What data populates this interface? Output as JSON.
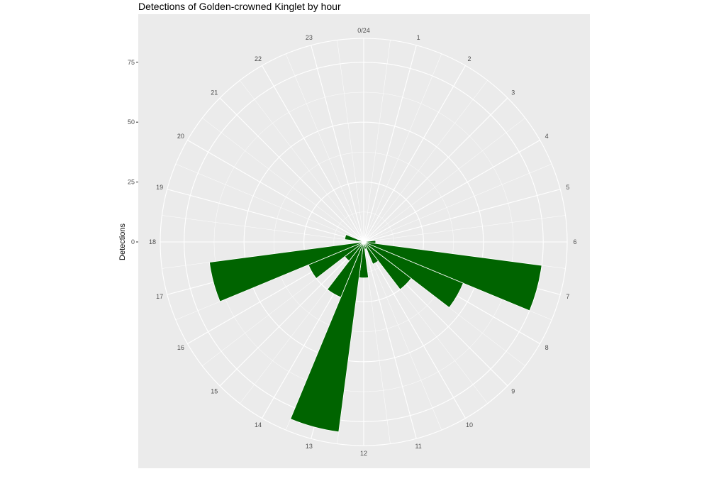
{
  "chart_data": {
    "type": "bar",
    "coord": "polar",
    "title": "Detections of Golden-crowned Kinglet by hour",
    "xlabel": "",
    "ylabel": "Detections",
    "categories": [
      "0/24",
      "1",
      "2",
      "3",
      "4",
      "5",
      "6",
      "7",
      "8",
      "9",
      "10",
      "11",
      "12",
      "13",
      "14",
      "15",
      "16",
      "17",
      "18",
      "19",
      "20",
      "21",
      "22",
      "23"
    ],
    "values": [
      0,
      0,
      0,
      0,
      0,
      0,
      5,
      75,
      45,
      25,
      10,
      3,
      15,
      80,
      25,
      10,
      25,
      65,
      0,
      8,
      0,
      0,
      0,
      0
    ],
    "y_ticks": [
      "0",
      "25",
      "50",
      "75"
    ],
    "ylim": [
      0,
      85
    ],
    "bar_color": "#006400",
    "panel_color": "#ebebeb",
    "grid_color": "#ffffff",
    "grid": true
  }
}
